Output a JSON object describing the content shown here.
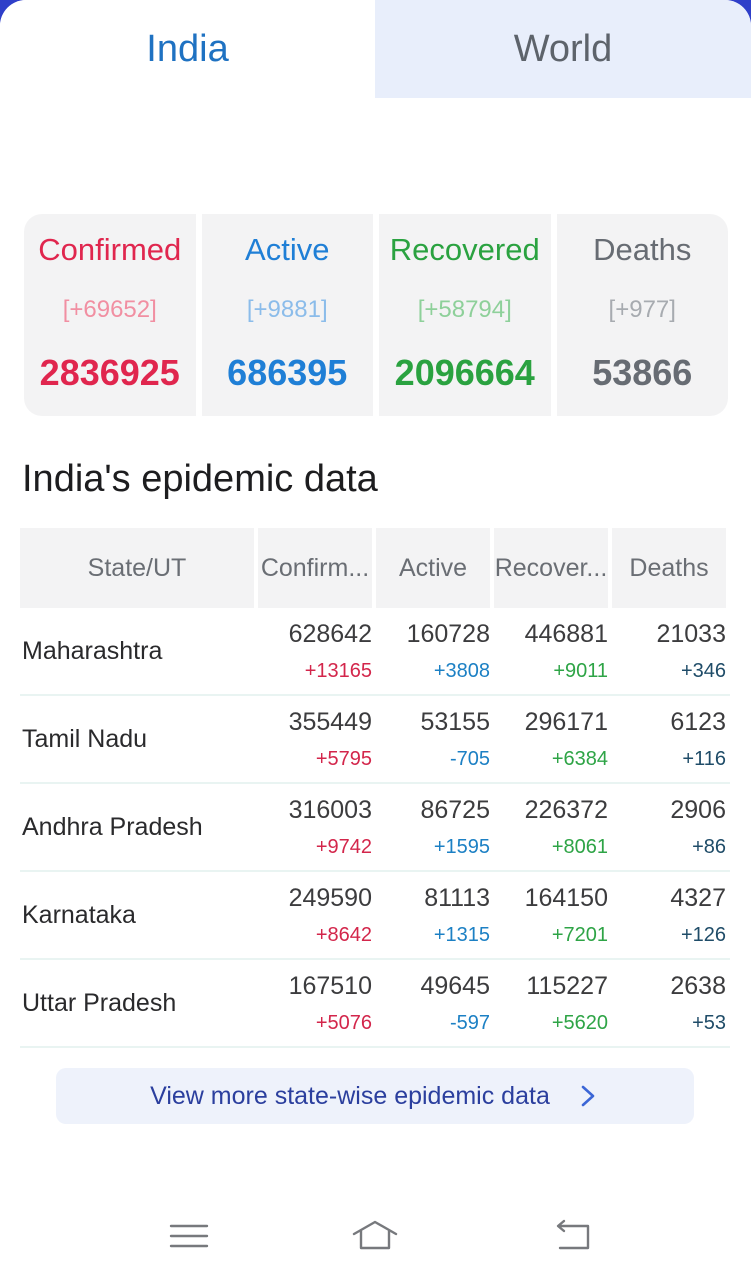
{
  "tabs": [
    {
      "label": "India",
      "active": true
    },
    {
      "label": "World",
      "active": false
    }
  ],
  "summary": {
    "confirmed": {
      "label": "Confirmed",
      "delta": "[+69652]",
      "total": "2836925"
    },
    "active": {
      "label": "Active",
      "delta": "[+9881]",
      "total": "686395"
    },
    "recovered": {
      "label": "Recovered",
      "delta": "[+58794]",
      "total": "2096664"
    },
    "deaths": {
      "label": "Deaths",
      "delta": "[+977]",
      "total": "53866"
    }
  },
  "section_title": "India's epidemic data",
  "table": {
    "headers": [
      "State/UT",
      "Confirm...",
      "Active",
      "Recover...",
      "Deaths"
    ],
    "rows": [
      {
        "state": "Maharashtra",
        "confirmed": "628642",
        "confirmed_inc": "+13165",
        "active": "160728",
        "active_inc": "+3808",
        "recovered": "446881",
        "recovered_inc": "+9011",
        "deaths": "21033",
        "deaths_inc": "+346"
      },
      {
        "state": "Tamil Nadu",
        "confirmed": "355449",
        "confirmed_inc": "+5795",
        "active": "53155",
        "active_inc": "-705",
        "recovered": "296171",
        "recovered_inc": "+6384",
        "deaths": "6123",
        "deaths_inc": "+116"
      },
      {
        "state": "Andhra Pradesh",
        "confirmed": "316003",
        "confirmed_inc": "+9742",
        "active": "86725",
        "active_inc": "+1595",
        "recovered": "226372",
        "recovered_inc": "+8061",
        "deaths": "2906",
        "deaths_inc": "+86"
      },
      {
        "state": "Karnataka",
        "confirmed": "249590",
        "confirmed_inc": "+8642",
        "active": "81113",
        "active_inc": "+1315",
        "recovered": "164150",
        "recovered_inc": "+7201",
        "deaths": "4327",
        "deaths_inc": "+126"
      },
      {
        "state": "Uttar Pradesh",
        "confirmed": "167510",
        "confirmed_inc": "+5076",
        "active": "49645",
        "active_inc": "-597",
        "recovered": "115227",
        "recovered_inc": "+5620",
        "deaths": "2638",
        "deaths_inc": "+53"
      }
    ]
  },
  "more_button": {
    "label": "View more state-wise epidemic data",
    "icon": "chevron-right-icon"
  },
  "navbar": {
    "icons": [
      "menu-icon",
      "home-icon",
      "back-icon"
    ]
  },
  "colors": {
    "confirmed": "#e0264e",
    "active": "#1f7fd6",
    "recovered": "#2aa240",
    "deaths": "#676c73",
    "tab_active": "#1f72c2"
  }
}
